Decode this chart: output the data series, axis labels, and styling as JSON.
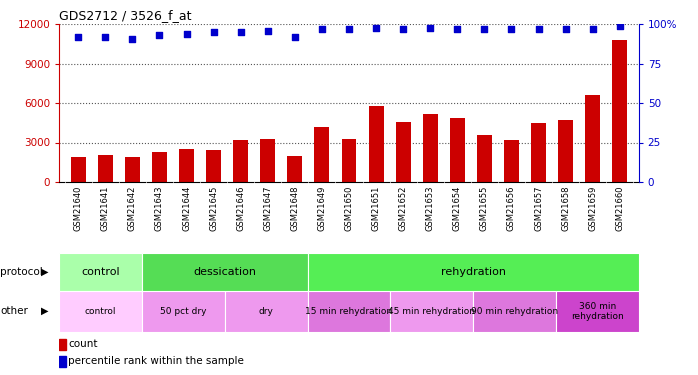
{
  "title": "GDS2712 / 3526_f_at",
  "samples": [
    "GSM21640",
    "GSM21641",
    "GSM21642",
    "GSM21643",
    "GSM21644",
    "GSM21645",
    "GSM21646",
    "GSM21647",
    "GSM21648",
    "GSM21649",
    "GSM21650",
    "GSM21651",
    "GSM21652",
    "GSM21653",
    "GSM21654",
    "GSM21655",
    "GSM21656",
    "GSM21657",
    "GSM21658",
    "GSM21659",
    "GSM21660"
  ],
  "counts": [
    1900,
    2050,
    1870,
    2300,
    2500,
    2450,
    3200,
    3300,
    1950,
    4200,
    3300,
    5800,
    4600,
    5200,
    4900,
    3600,
    3200,
    4500,
    4700,
    6600,
    10800
  ],
  "percentile": [
    92,
    92,
    91,
    93,
    94,
    95,
    95,
    96,
    92,
    97,
    97,
    98,
    97,
    98,
    97,
    97,
    97,
    97,
    97,
    97,
    99
  ],
  "bar_color": "#cc0000",
  "dot_color": "#0000cc",
  "ylim_left": [
    0,
    12000
  ],
  "ylim_right": [
    0,
    100
  ],
  "yticks_left": [
    0,
    3000,
    6000,
    9000,
    12000
  ],
  "yticks_right": [
    0,
    25,
    50,
    75,
    100
  ],
  "ytick_labels_right": [
    "0",
    "25",
    "50",
    "75",
    "100%"
  ],
  "grid_color": "#555555",
  "bg_color": "#ffffff",
  "xtick_bg": "#cccccc",
  "protocol_row": {
    "label": "protocol",
    "segments": [
      {
        "text": "control",
        "start": 0,
        "end": 3,
        "color": "#aaffaa"
      },
      {
        "text": "dessication",
        "start": 3,
        "end": 9,
        "color": "#55dd55"
      },
      {
        "text": "rehydration",
        "start": 9,
        "end": 21,
        "color": "#55ee55"
      }
    ]
  },
  "other_row": {
    "label": "other",
    "segments": [
      {
        "text": "control",
        "start": 0,
        "end": 3,
        "color": "#ffccff"
      },
      {
        "text": "50 pct dry",
        "start": 3,
        "end": 6,
        "color": "#ee99ee"
      },
      {
        "text": "dry",
        "start": 6,
        "end": 9,
        "color": "#ee99ee"
      },
      {
        "text": "15 min rehydration",
        "start": 9,
        "end": 12,
        "color": "#dd77dd"
      },
      {
        "text": "45 min rehydration",
        "start": 12,
        "end": 15,
        "color": "#ee99ee"
      },
      {
        "text": "90 min rehydration",
        "start": 15,
        "end": 18,
        "color": "#dd77dd"
      },
      {
        "text": "360 min\nrehydration",
        "start": 18,
        "end": 21,
        "color": "#cc44cc"
      }
    ]
  },
  "legend": [
    {
      "label": "count",
      "color": "#cc0000"
    },
    {
      "label": "percentile rank within the sample",
      "color": "#0000cc"
    }
  ]
}
